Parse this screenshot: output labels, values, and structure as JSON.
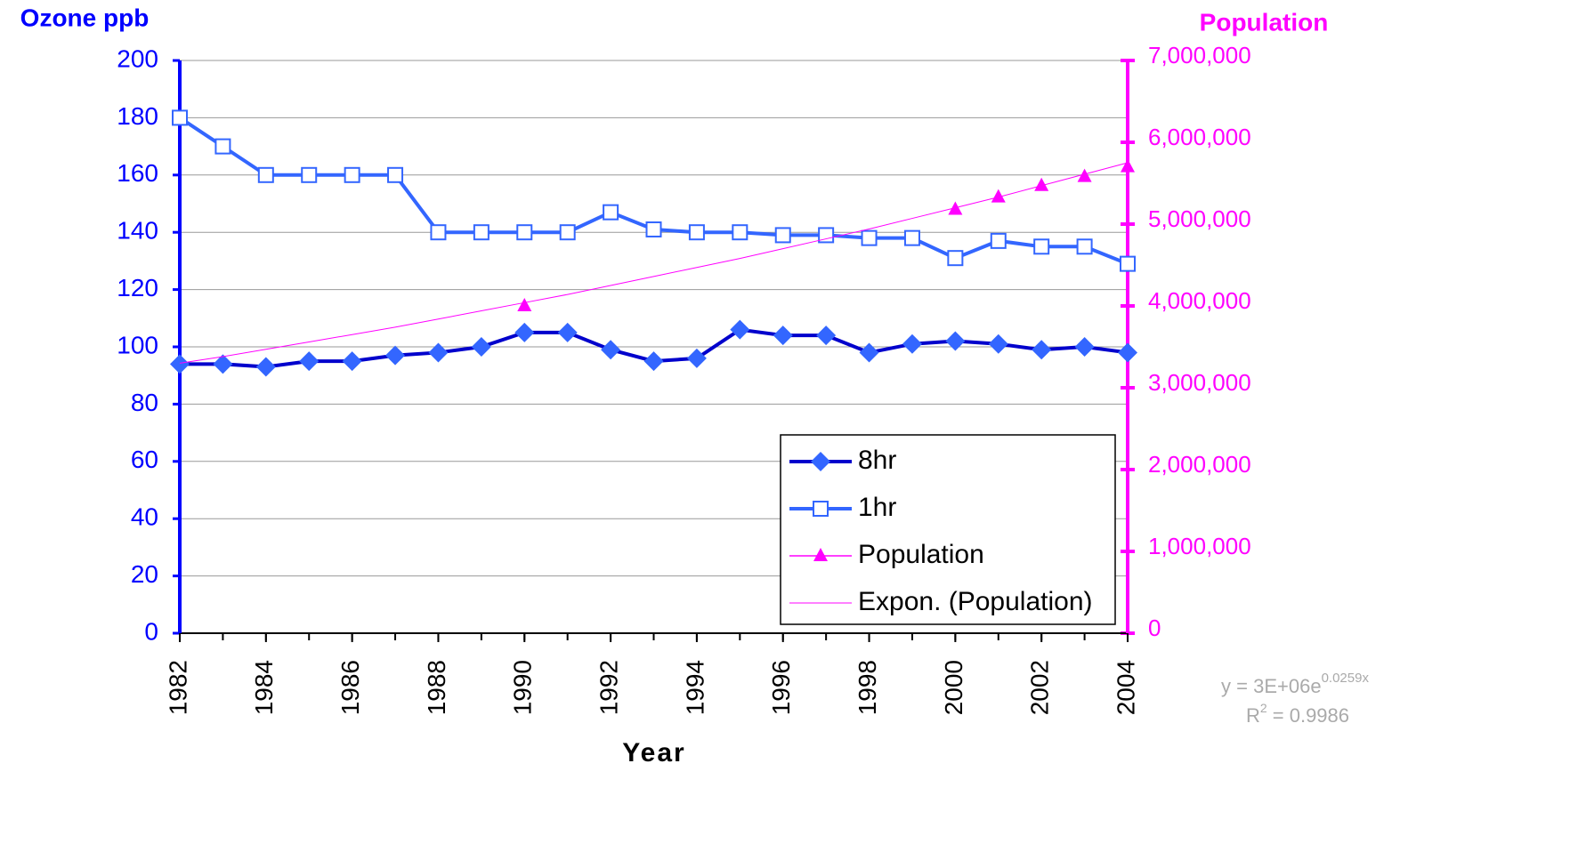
{
  "chart_data": {
    "type": "line",
    "y_axis_title": "Ozone ppb",
    "y2_axis_title": "Population",
    "x_axis_title": "Year",
    "x": [
      1982,
      1983,
      1984,
      1985,
      1986,
      1987,
      1988,
      1989,
      1990,
      1991,
      1992,
      1993,
      1994,
      1995,
      1996,
      1997,
      1998,
      1999,
      2000,
      2001,
      2002,
      2003,
      2004
    ],
    "xlim": [
      1982,
      2004
    ],
    "xticks": [
      1982,
      1984,
      1986,
      1988,
      1990,
      1992,
      1994,
      1996,
      1998,
      2000,
      2002,
      2004
    ],
    "ylim": [
      0,
      200
    ],
    "yticks": [
      0,
      20,
      40,
      60,
      80,
      100,
      120,
      140,
      160,
      180,
      200
    ],
    "y2lim": [
      0,
      7000000
    ],
    "y2ticks": [
      0,
      {
        "value": 1000000,
        "label": "1,000,000"
      },
      {
        "value": 2000000,
        "label": "2,000,000"
      },
      {
        "value": 3000000,
        "label": "3,000,000"
      },
      {
        "value": 4000000,
        "label": "4,000,000"
      },
      {
        "value": 5000000,
        "label": "5,000,000"
      },
      {
        "value": 6000000,
        "label": "6,000,000"
      },
      {
        "value": 7000000,
        "label": "7,000,000"
      }
    ],
    "grid": true,
    "series": [
      {
        "name": "8hr",
        "color": "#0000cc",
        "marker_color": "#3366ff",
        "marker": "diamond",
        "line": true,
        "values": [
          94,
          94,
          93,
          95,
          95,
          97,
          98,
          100,
          105,
          105,
          99,
          95,
          96,
          106,
          104,
          104,
          98,
          101,
          102,
          101,
          99,
          100,
          98
        ]
      },
      {
        "name": "1hr",
        "color": "#3366ff",
        "marker_color": "#ffffff",
        "marker": "square",
        "line": true,
        "values": [
          180,
          170,
          160,
          160,
          160,
          160,
          140,
          140,
          140,
          140,
          147,
          141,
          140,
          140,
          139,
          139,
          138,
          138,
          131,
          137,
          135,
          135,
          129
        ]
      },
      {
        "name": "Population",
        "color": "#ff00ff",
        "marker_color": "#ff00ff",
        "marker": "triangle",
        "line": false,
        "axis": "y2",
        "values": [
          null,
          null,
          null,
          null,
          null,
          null,
          null,
          null,
          4000000,
          null,
          null,
          null,
          null,
          null,
          null,
          null,
          null,
          null,
          5180000,
          5330000,
          5470000,
          5580000,
          5700000
        ]
      },
      {
        "name": "Expon. (Population)",
        "color": "#ff00ff",
        "marker": "none",
        "line": true,
        "thin": true,
        "axis": "y2",
        "values": [
          3300000,
          3380000,
          3470000,
          3560000,
          3650000,
          3740000,
          3840000,
          3940000,
          4040000,
          4140000,
          4250000,
          4360000,
          4470000,
          4580000,
          4700000,
          4820000,
          4940000,
          5070000,
          5200000,
          5330000,
          5470000,
          5610000,
          5750000
        ]
      }
    ],
    "trend_equation": {
      "base": "y = 3E+06e",
      "exponent": "0.0259x"
    },
    "r_squared": {
      "base": "R",
      "sup": "2",
      "rest": " = 0.9986"
    }
  }
}
